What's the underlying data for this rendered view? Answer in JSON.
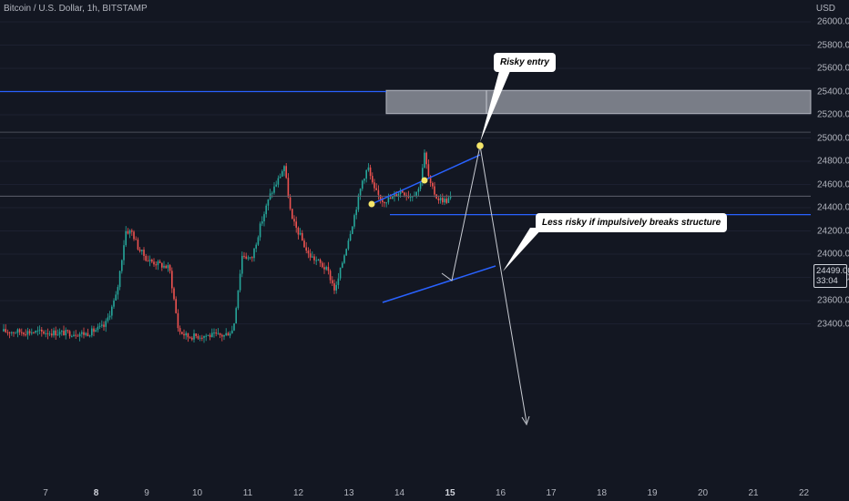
{
  "chart": {
    "title": "Bitcoin / U.S. Dollar, 1h, BITSTAMP",
    "currency": "USD",
    "current_price": "24499.00",
    "countdown": "33:04"
  },
  "y_axis": {
    "ticks": [
      "26000.00",
      "25800.00",
      "25600.00",
      "25400.00",
      "25200.00",
      "25000.00",
      "24800.00",
      "24600.00",
      "24400.00",
      "24200.00",
      "24000.00",
      "23800.00",
      "23600.00",
      "23400.00"
    ]
  },
  "x_axis": {
    "ticks": [
      {
        "label": "7",
        "bold": false
      },
      {
        "label": "8",
        "bold": true
      },
      {
        "label": "9",
        "bold": false
      },
      {
        "label": "10",
        "bold": false
      },
      {
        "label": "11",
        "bold": false
      },
      {
        "label": "12",
        "bold": false
      },
      {
        "label": "13",
        "bold": false
      },
      {
        "label": "14",
        "bold": false
      },
      {
        "label": "15",
        "bold": true
      },
      {
        "label": "16",
        "bold": false
      },
      {
        "label": "17",
        "bold": false
      },
      {
        "label": "18",
        "bold": false
      },
      {
        "label": "19",
        "bold": false
      },
      {
        "label": "20",
        "bold": false
      },
      {
        "label": "21",
        "bold": false
      },
      {
        "label": "22",
        "bold": false
      }
    ]
  },
  "annotations": {
    "risky_entry": "Risky entry",
    "less_risky": "Less risky if impulsively breaks structure"
  },
  "levels": {
    "resistance_line": 25400,
    "support_line": 24340,
    "gray_line": 25050,
    "current_price_line": 24499,
    "supply_zone": [
      25210,
      25410
    ]
  },
  "colors": {
    "background": "#131722",
    "bull": "#26a69a",
    "bear": "#ef5350",
    "level_line": "#2962ff",
    "zone": "#8c8f99",
    "pivot_marker": "#f5e66a"
  }
}
